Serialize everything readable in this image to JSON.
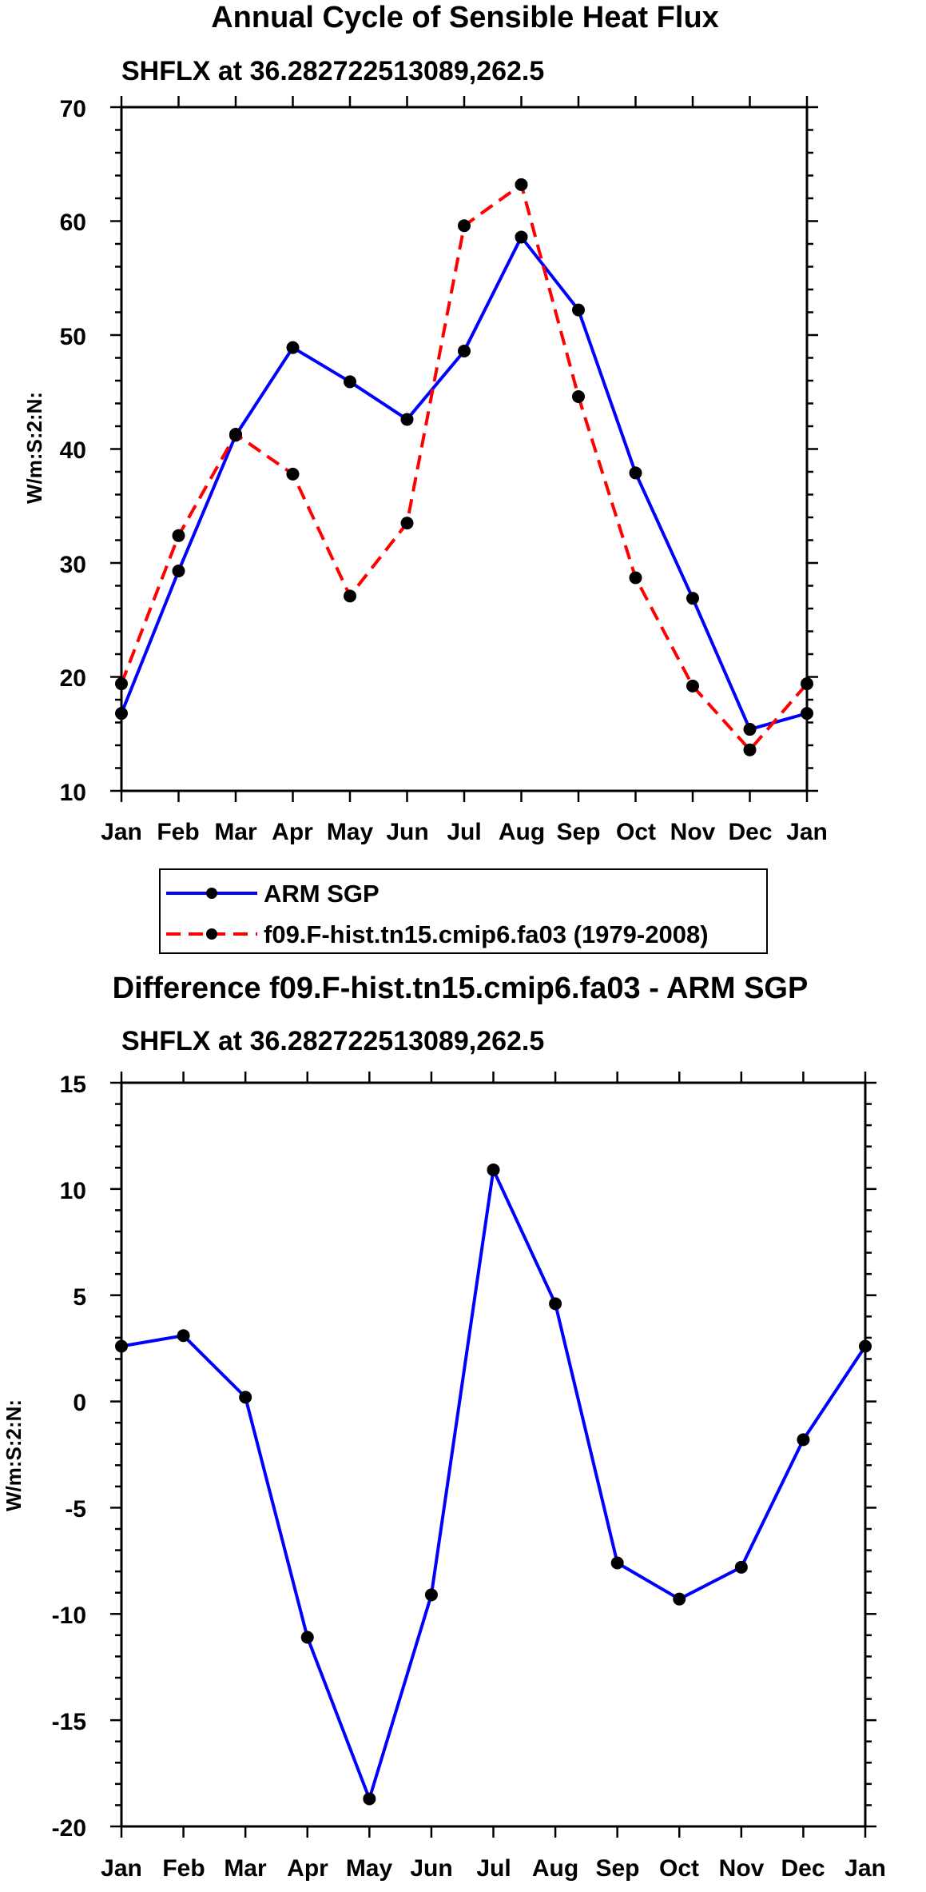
{
  "colors": {
    "obs": "#0000ff",
    "model": "#ff0000",
    "marker": "#000000",
    "axis": "#000000"
  },
  "chart_data": [
    {
      "type": "line",
      "title": "Annual Cycle of Sensible Heat Flux",
      "subtitle": "SHFLX at 36.282722513089,262.5",
      "xlabel": "",
      "ylabel": "W/m:S:2:N:",
      "categories": [
        "Jan",
        "Feb",
        "Mar",
        "Apr",
        "May",
        "Jun",
        "Jul",
        "Aug",
        "Sep",
        "Oct",
        "Nov",
        "Dec",
        "Jan"
      ],
      "ylim": [
        10,
        70
      ],
      "yticks": [
        "10",
        "20",
        "30",
        "40",
        "50",
        "60",
        "70"
      ],
      "legend_position": "bottom",
      "series": [
        {
          "name": "ARM SGP",
          "style": "solid",
          "color": "#0000ff",
          "values": [
            16.8,
            29.3,
            41.2,
            48.9,
            45.9,
            42.6,
            48.6,
            58.6,
            52.2,
            37.9,
            26.9,
            15.4,
            16.8
          ]
        },
        {
          "name": "f09.F-hist.tn15.cmip6.fa03 (1979-2008)",
          "style": "dashed",
          "color": "#ff0000",
          "values": [
            19.4,
            32.4,
            41.3,
            37.8,
            27.1,
            33.5,
            59.6,
            63.2,
            44.6,
            28.7,
            19.2,
            13.6,
            19.4
          ]
        }
      ]
    },
    {
      "type": "line",
      "title": "Difference f09.F-hist.tn15.cmip6.fa03 - ARM SGP",
      "subtitle": "SHFLX at 36.282722513089,262.5",
      "xlabel": "",
      "ylabel": "W/m:S:2:N:",
      "categories": [
        "Jan",
        "Feb",
        "Mar",
        "Apr",
        "May",
        "Jun",
        "Jul",
        "Aug",
        "Sep",
        "Oct",
        "Nov",
        "Dec",
        "Jan"
      ],
      "ylim": [
        -20,
        15
      ],
      "yticks": [
        "-20",
        "-15",
        "-10",
        "-5",
        "0",
        "5",
        "10",
        "15"
      ],
      "series": [
        {
          "name": "Difference",
          "style": "solid",
          "color": "#0000ff",
          "values": [
            2.6,
            3.1,
            0.2,
            -11.1,
            -18.7,
            -9.1,
            10.9,
            4.6,
            -7.6,
            -9.3,
            -7.8,
            -1.8,
            2.6
          ]
        }
      ]
    }
  ]
}
